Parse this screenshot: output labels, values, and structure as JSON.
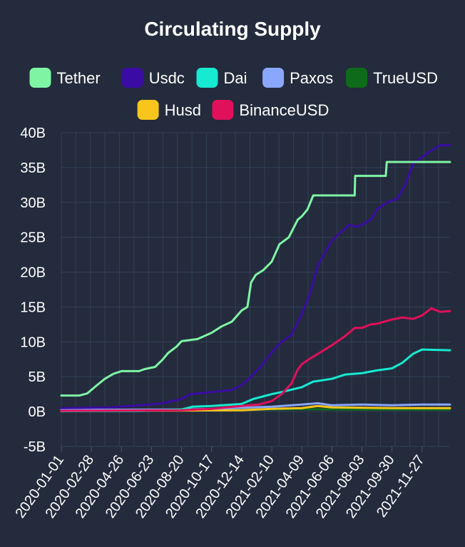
{
  "chart_data": {
    "type": "line",
    "title": "Circulating Supply",
    "xlabel": "",
    "ylabel": "",
    "ylim": [
      -5,
      40
    ],
    "yticks": [
      "40B",
      "35B",
      "30B",
      "25B",
      "20B",
      "15B",
      "10B",
      "5B",
      "0B",
      "-5B"
    ],
    "ytick_values": [
      40,
      35,
      30,
      25,
      20,
      15,
      10,
      5,
      0,
      -5
    ],
    "xlim": [
      "2020-01-01",
      "2022-01-20"
    ],
    "xticks": [
      "2020-01-01",
      "2020-02-28",
      "2020-04-26",
      "2020-06-23",
      "2020-08-20",
      "2020-10-17",
      "2020-12-14",
      "2021-02-10",
      "2021-04-09",
      "2021-06-06",
      "2021-08-03",
      "2021-09-30",
      "2021-11-27"
    ],
    "grid": true,
    "legend_position": "top",
    "series": [
      {
        "name": "Tether",
        "color": "#7ff5a4",
        "points": [
          [
            "2020-01-01",
            2.3
          ],
          [
            "2020-02-05",
            2.3
          ],
          [
            "2020-02-20",
            2.6
          ],
          [
            "2020-03-10",
            3.8
          ],
          [
            "2020-03-25",
            4.7
          ],
          [
            "2020-04-10",
            5.4
          ],
          [
            "2020-04-26",
            5.8
          ],
          [
            "2020-05-30",
            5.8
          ],
          [
            "2020-06-10",
            6.1
          ],
          [
            "2020-06-30",
            6.4
          ],
          [
            "2020-07-15",
            7.5
          ],
          [
            "2020-07-25",
            8.4
          ],
          [
            "2020-08-10",
            9.3
          ],
          [
            "2020-08-20",
            10.1
          ],
          [
            "2020-09-20",
            10.4
          ],
          [
            "2020-10-17",
            11.3
          ],
          [
            "2020-11-05",
            12.2
          ],
          [
            "2020-11-25",
            12.9
          ],
          [
            "2020-12-14",
            14.5
          ],
          [
            "2020-12-25",
            15.0
          ],
          [
            "2021-01-01",
            18.5
          ],
          [
            "2021-01-10",
            19.6
          ],
          [
            "2021-01-25",
            20.3
          ],
          [
            "2021-02-10",
            21.5
          ],
          [
            "2021-02-25",
            24.0
          ],
          [
            "2021-03-15",
            25.0
          ],
          [
            "2021-04-01",
            27.5
          ],
          [
            "2021-04-09",
            28.0
          ],
          [
            "2021-04-20",
            29.0
          ],
          [
            "2021-05-01",
            31.0
          ],
          [
            "2021-06-06",
            31.0
          ],
          [
            "2021-07-20",
            31.0
          ],
          [
            "2021-07-21",
            33.8
          ],
          [
            "2021-09-18",
            33.8
          ],
          [
            "2021-09-20",
            35.8
          ],
          [
            "2022-01-20",
            35.8
          ]
        ]
      },
      {
        "name": "Usdc",
        "color": "#3a0ca3",
        "points": [
          [
            "2020-01-01",
            0.5
          ],
          [
            "2020-04-01",
            0.6
          ],
          [
            "2020-06-01",
            0.9
          ],
          [
            "2020-07-15",
            1.2
          ],
          [
            "2020-08-20",
            1.8
          ],
          [
            "2020-09-05",
            2.5
          ],
          [
            "2020-10-17",
            2.8
          ],
          [
            "2020-11-25",
            3.1
          ],
          [
            "2020-12-14",
            3.8
          ],
          [
            "2021-01-01",
            5.0
          ],
          [
            "2021-01-20",
            6.5
          ],
          [
            "2021-02-10",
            8.5
          ],
          [
            "2021-03-01",
            10.0
          ],
          [
            "2021-03-20",
            11.0
          ],
          [
            "2021-04-09",
            14.0
          ],
          [
            "2021-04-25",
            17.0
          ],
          [
            "2021-05-10",
            21.0
          ],
          [
            "2021-05-25",
            23.0
          ],
          [
            "2021-06-06",
            24.5
          ],
          [
            "2021-06-20",
            25.5
          ],
          [
            "2021-07-10",
            26.8
          ],
          [
            "2021-07-25",
            26.5
          ],
          [
            "2021-08-03",
            26.8
          ],
          [
            "2021-08-20",
            27.5
          ],
          [
            "2021-09-01",
            29.0
          ],
          [
            "2021-09-20",
            30.0
          ],
          [
            "2021-10-10",
            30.5
          ],
          [
            "2021-10-25",
            32.5
          ],
          [
            "2021-11-10",
            35.5
          ],
          [
            "2021-11-27",
            36.5
          ],
          [
            "2021-12-10",
            37.2
          ],
          [
            "2022-01-01",
            38.2
          ],
          [
            "2022-01-20",
            38.2
          ]
        ]
      },
      {
        "name": "Dai",
        "color": "#16ead0",
        "points": [
          [
            "2020-01-01",
            0.05
          ],
          [
            "2020-06-01",
            0.1
          ],
          [
            "2020-08-20",
            0.3
          ],
          [
            "2020-09-10",
            0.7
          ],
          [
            "2020-10-17",
            0.8
          ],
          [
            "2020-12-14",
            1.1
          ],
          [
            "2021-01-05",
            1.8
          ],
          [
            "2021-02-10",
            2.5
          ],
          [
            "2021-03-01",
            2.8
          ],
          [
            "2021-04-09",
            3.5
          ],
          [
            "2021-05-01",
            4.3
          ],
          [
            "2021-06-06",
            4.7
          ],
          [
            "2021-07-01",
            5.3
          ],
          [
            "2021-08-03",
            5.5
          ],
          [
            "2021-09-01",
            5.9
          ],
          [
            "2021-09-30",
            6.2
          ],
          [
            "2021-10-20",
            7.0
          ],
          [
            "2021-11-10",
            8.3
          ],
          [
            "2021-11-27",
            8.9
          ],
          [
            "2022-01-20",
            8.8
          ]
        ]
      },
      {
        "name": "Paxos",
        "color": "#8aa7ff",
        "points": [
          [
            "2020-01-01",
            0.25
          ],
          [
            "2020-08-20",
            0.3
          ],
          [
            "2020-10-17",
            0.4
          ],
          [
            "2021-02-10",
            0.7
          ],
          [
            "2021-04-09",
            1.0
          ],
          [
            "2021-05-10",
            1.2
          ],
          [
            "2021-06-06",
            0.9
          ],
          [
            "2021-08-03",
            1.0
          ],
          [
            "2021-09-30",
            0.9
          ],
          [
            "2021-11-27",
            1.0
          ],
          [
            "2022-01-20",
            1.0
          ]
        ]
      },
      {
        "name": "TrueUSD",
        "color": "#0e6b1a",
        "points": [
          [
            "2020-01-01",
            0.15
          ],
          [
            "2020-06-23",
            0.2
          ],
          [
            "2020-12-14",
            0.3
          ],
          [
            "2021-04-09",
            0.35
          ],
          [
            "2021-08-03",
            0.3
          ],
          [
            "2022-01-20",
            0.3
          ]
        ]
      },
      {
        "name": "Husd",
        "color": "#f7c51b",
        "points": [
          [
            "2020-01-01",
            0.1
          ],
          [
            "2020-08-20",
            0.15
          ],
          [
            "2020-12-14",
            0.2
          ],
          [
            "2021-02-10",
            0.4
          ],
          [
            "2021-04-09",
            0.5
          ],
          [
            "2021-05-10",
            0.8
          ],
          [
            "2021-06-06",
            0.6
          ],
          [
            "2021-09-30",
            0.5
          ],
          [
            "2022-01-20",
            0.5
          ]
        ]
      },
      {
        "name": "BinanceUSD",
        "color": "#e0105a",
        "points": [
          [
            "2020-01-01",
            0.1
          ],
          [
            "2020-08-20",
            0.2
          ],
          [
            "2020-10-17",
            0.4
          ],
          [
            "2020-12-14",
            0.8
          ],
          [
            "2021-01-15",
            1.0
          ],
          [
            "2021-02-10",
            1.5
          ],
          [
            "2021-03-01",
            2.5
          ],
          [
            "2021-03-20",
            4.0
          ],
          [
            "2021-04-01",
            6.0
          ],
          [
            "2021-04-09",
            6.8
          ],
          [
            "2021-04-25",
            7.6
          ],
          [
            "2021-05-15",
            8.5
          ],
          [
            "2021-06-06",
            9.5
          ],
          [
            "2021-07-01",
            10.8
          ],
          [
            "2021-07-20",
            12.0
          ],
          [
            "2021-08-03",
            12.0
          ],
          [
            "2021-08-20",
            12.5
          ],
          [
            "2021-09-01",
            12.6
          ],
          [
            "2021-09-30",
            13.2
          ],
          [
            "2021-10-20",
            13.5
          ],
          [
            "2021-11-10",
            13.3
          ],
          [
            "2021-11-27",
            13.8
          ],
          [
            "2021-12-15",
            14.8
          ],
          [
            "2022-01-01",
            14.3
          ],
          [
            "2022-01-20",
            14.4
          ]
        ]
      }
    ]
  }
}
